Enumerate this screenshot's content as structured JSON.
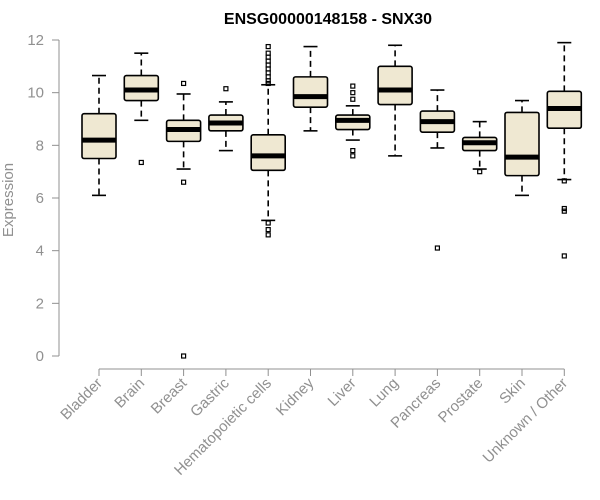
{
  "chart_data": {
    "type": "boxplot",
    "title": "ENSG00000148158 - SNX30",
    "ylabel": "Expression",
    "xlabel": "",
    "ylim": [
      0,
      12
    ],
    "yticks": [
      0,
      2,
      4,
      6,
      8,
      10,
      12
    ],
    "grid": false,
    "colors": {
      "box_fill": "#efe8d2",
      "box_stroke": "#000000",
      "axis": "#909090",
      "label": "#909090"
    },
    "categories": [
      "Bladder",
      "Brain",
      "Breast",
      "Gastric",
      "Hematopoietic cells",
      "Kidney",
      "Liver",
      "Lung",
      "Pancreas",
      "Prostate",
      "Skin",
      "Unknown / Other"
    ],
    "boxes": [
      {
        "min": 6.1,
        "q1": 7.5,
        "median": 8.2,
        "q3": 9.2,
        "max": 10.65,
        "outliers": []
      },
      {
        "min": 8.95,
        "q1": 9.7,
        "median": 10.1,
        "q3": 10.65,
        "max": 11.5,
        "outliers": [
          7.35
        ]
      },
      {
        "min": 7.1,
        "q1": 8.15,
        "median": 8.6,
        "q3": 8.95,
        "max": 9.95,
        "outliers": [
          10.35,
          6.6,
          0.0
        ]
      },
      {
        "min": 7.8,
        "q1": 8.55,
        "median": 8.85,
        "q3": 9.15,
        "max": 9.65,
        "outliers": [
          10.15
        ]
      },
      {
        "min": 5.15,
        "q1": 7.05,
        "median": 7.6,
        "q3": 8.4,
        "max": 10.3,
        "outliers": [
          10.45,
          10.6,
          10.75,
          10.9,
          11.05,
          11.2,
          11.35,
          11.5,
          11.75,
          10.35,
          5.05,
          4.8,
          4.6
        ]
      },
      {
        "min": 8.55,
        "q1": 9.45,
        "median": 9.85,
        "q3": 10.6,
        "max": 11.75,
        "outliers": []
      },
      {
        "min": 8.2,
        "q1": 8.6,
        "median": 8.95,
        "q3": 9.15,
        "max": 9.5,
        "outliers": [
          10.25,
          10.0,
          9.75,
          7.8,
          7.6
        ]
      },
      {
        "min": 7.6,
        "q1": 9.55,
        "median": 10.1,
        "q3": 11.0,
        "max": 11.8,
        "outliers": []
      },
      {
        "min": 7.9,
        "q1": 8.5,
        "median": 8.9,
        "q3": 9.3,
        "max": 10.1,
        "outliers": [
          4.1
        ]
      },
      {
        "min": 7.1,
        "q1": 7.8,
        "median": 8.1,
        "q3": 8.3,
        "max": 8.9,
        "outliers": [
          7.0
        ]
      },
      {
        "min": 6.1,
        "q1": 6.85,
        "median": 7.55,
        "q3": 9.25,
        "max": 9.7,
        "outliers": []
      },
      {
        "min": 6.7,
        "q1": 8.65,
        "median": 9.4,
        "q3": 10.05,
        "max": 11.9,
        "outliers": [
          6.65,
          5.6,
          5.5,
          3.8
        ]
      }
    ]
  }
}
